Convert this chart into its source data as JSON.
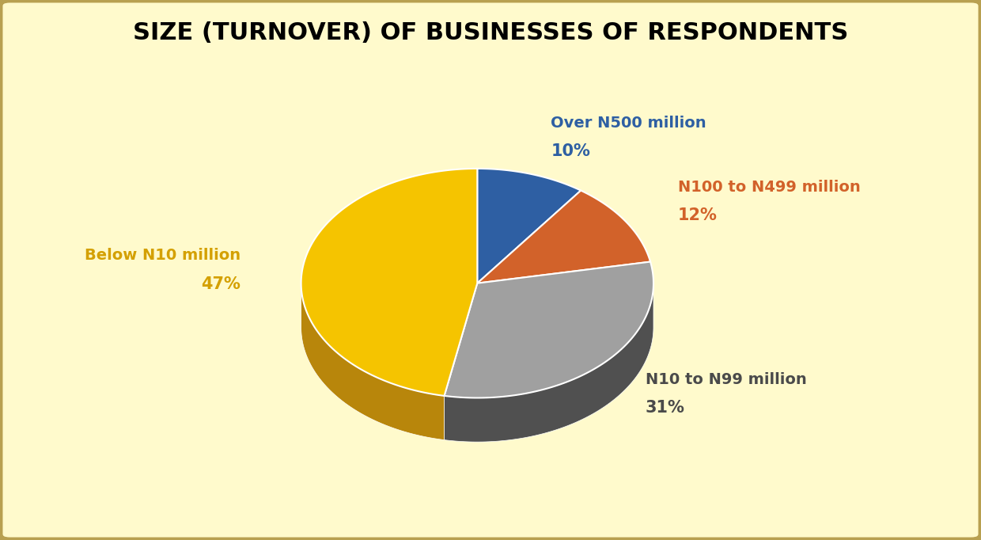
{
  "title": "SIZE (TURNOVER) OF BUSINESSES OF RESPONDENTS",
  "slices": [
    {
      "label": "Over N500 million",
      "pct": 10,
      "color": "#2E5FA3",
      "text_color": "#2E5FA3"
    },
    {
      "label": "N100 to N499 million",
      "pct": 12,
      "color": "#D2622A",
      "text_color": "#D2622A"
    },
    {
      "label": "N10 to N99 million",
      "pct": 31,
      "color": "#A0A0A0",
      "text_color": "#4A4A4A"
    },
    {
      "label": "Below N10 million",
      "pct": 47,
      "color": "#F5C400",
      "text_color": "#D4A000"
    }
  ],
  "background_color": "#FFFACC",
  "border_color": "#B8A050",
  "title_fontsize": 22,
  "label_fontsize": 14,
  "pct_fontsize": 15
}
